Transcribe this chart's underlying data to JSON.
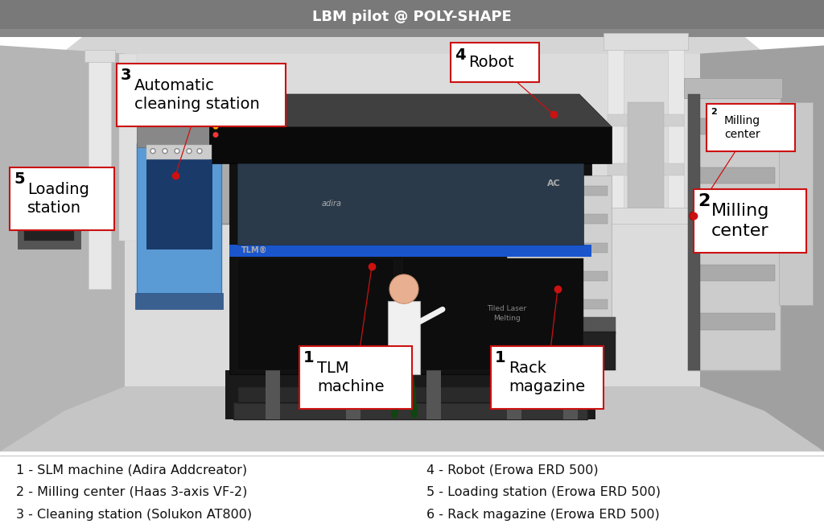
{
  "title": "LBM pilot @ POLY-SHAPE",
  "title_fontsize": 13,
  "fig_bg": "#ffffff",
  "legend_items_left": [
    "1 - SLM machine (Adira Addcreator)",
    "2 - Milling center (Haas 3-axis VF-2)",
    "3 - Cleaning station (Solukon AT800)"
  ],
  "legend_items_right": [
    "4 - Robot (Erowa ERD 500)",
    "5 - Loading station (Erowa ERD 500)",
    "6 - Rack magazine (Erowa ERD 500)"
  ],
  "room": {
    "floor_color": "#c8c8c8",
    "left_wall_color": "#b0b0b0",
    "right_wall_color": "#9a9a9a",
    "back_wall_color": "#d8d8d8",
    "ceiling_color": "#888888",
    "title_bar_color": "#7a7a7a"
  }
}
